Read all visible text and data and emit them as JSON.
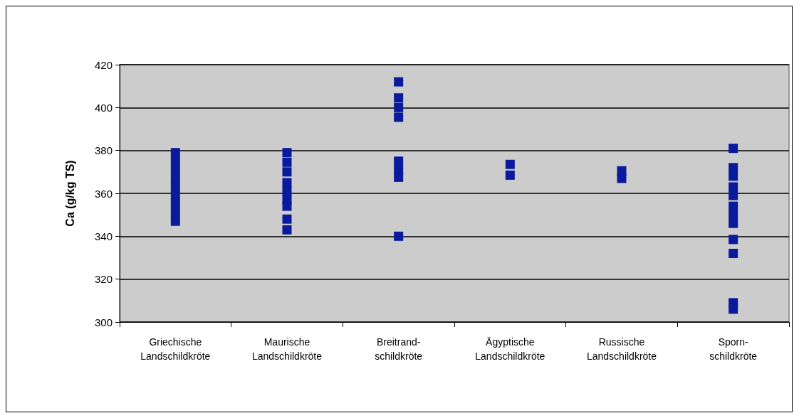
{
  "chart_data": {
    "type": "scatter",
    "ylabel": "Ca (g/kg TS)",
    "categories": [
      "Griechische\nLandschildkröte",
      "Maurische\nLandschildkröte",
      "Breitrand-\nschildkröte",
      "Ägyptische\nLandschildkröte",
      "Russische\nLandschildkröte",
      "Sporn-\nschildkröte"
    ],
    "series": [
      {
        "color": "#0a1a9c",
        "x": [
          "Griechische\nLandschildkröte",
          "Griechische\nLandschildkröte",
          "Griechische\nLandschildkröte",
          "Griechische\nLandschildkröte",
          "Griechische\nLandschildkröte",
          "Griechische\nLandschildkröte",
          "Griechische\nLandschildkröte",
          "Griechische\nLandschildkröte",
          "Griechische\nLandschildkröte",
          "Maurische\nLandschildkröte",
          "Maurische\nLandschildkröte",
          "Maurische\nLandschildkröte",
          "Maurische\nLandschildkröte",
          "Maurische\nLandschildkröte",
          "Maurische\nLandschildkröte",
          "Maurische\nLandschildkröte",
          "Maurische\nLandschildkröte",
          "Maurische\nLandschildkröte",
          "Breitrand-\nschildkröte",
          "Breitrand-\nschildkröte",
          "Breitrand-\nschildkröte",
          "Breitrand-\nschildkröte",
          "Breitrand-\nschildkröte",
          "Breitrand-\nschildkröte",
          "Breitrand-\nschildkröte",
          "Breitrand-\nschildkröte",
          "Ägyptische\nLandschildkröte",
          "Ägyptische\nLandschildkröte",
          "Russische\nLandschildkröte",
          "Russische\nLandschildkröte",
          "Sporn-\nschildkröte",
          "Sporn-\nschildkröte",
          "Sporn-\nschildkröte",
          "Sporn-\nschildkröte",
          "Sporn-\nschildkröte",
          "Sporn-\nschildkröte",
          "Sporn-\nschildkröte",
          "Sporn-\nschildkröte",
          "Sporn-\nschildkröte",
          "Sporn-\nschildkröte",
          "Sporn-\nschildkröte",
          "Sporn-\nschildkröte"
        ],
        "values": [
          379,
          375,
          371,
          367,
          363,
          359,
          355,
          351,
          347,
          379,
          374.5,
          370,
          365,
          361,
          357,
          354,
          348,
          343,
          412,
          404.5,
          400,
          395.5,
          375,
          371,
          367.5,
          340,
          373.5,
          368.5,
          370.5,
          367,
          381,
          372,
          368,
          363,
          359,
          354,
          350,
          346,
          338.5,
          332,
          309,
          306
        ]
      }
    ],
    "ylim": [
      300,
      420
    ],
    "yticks": [
      300,
      320,
      340,
      360,
      380,
      400,
      420
    ],
    "grid": "y",
    "marker": "square"
  }
}
